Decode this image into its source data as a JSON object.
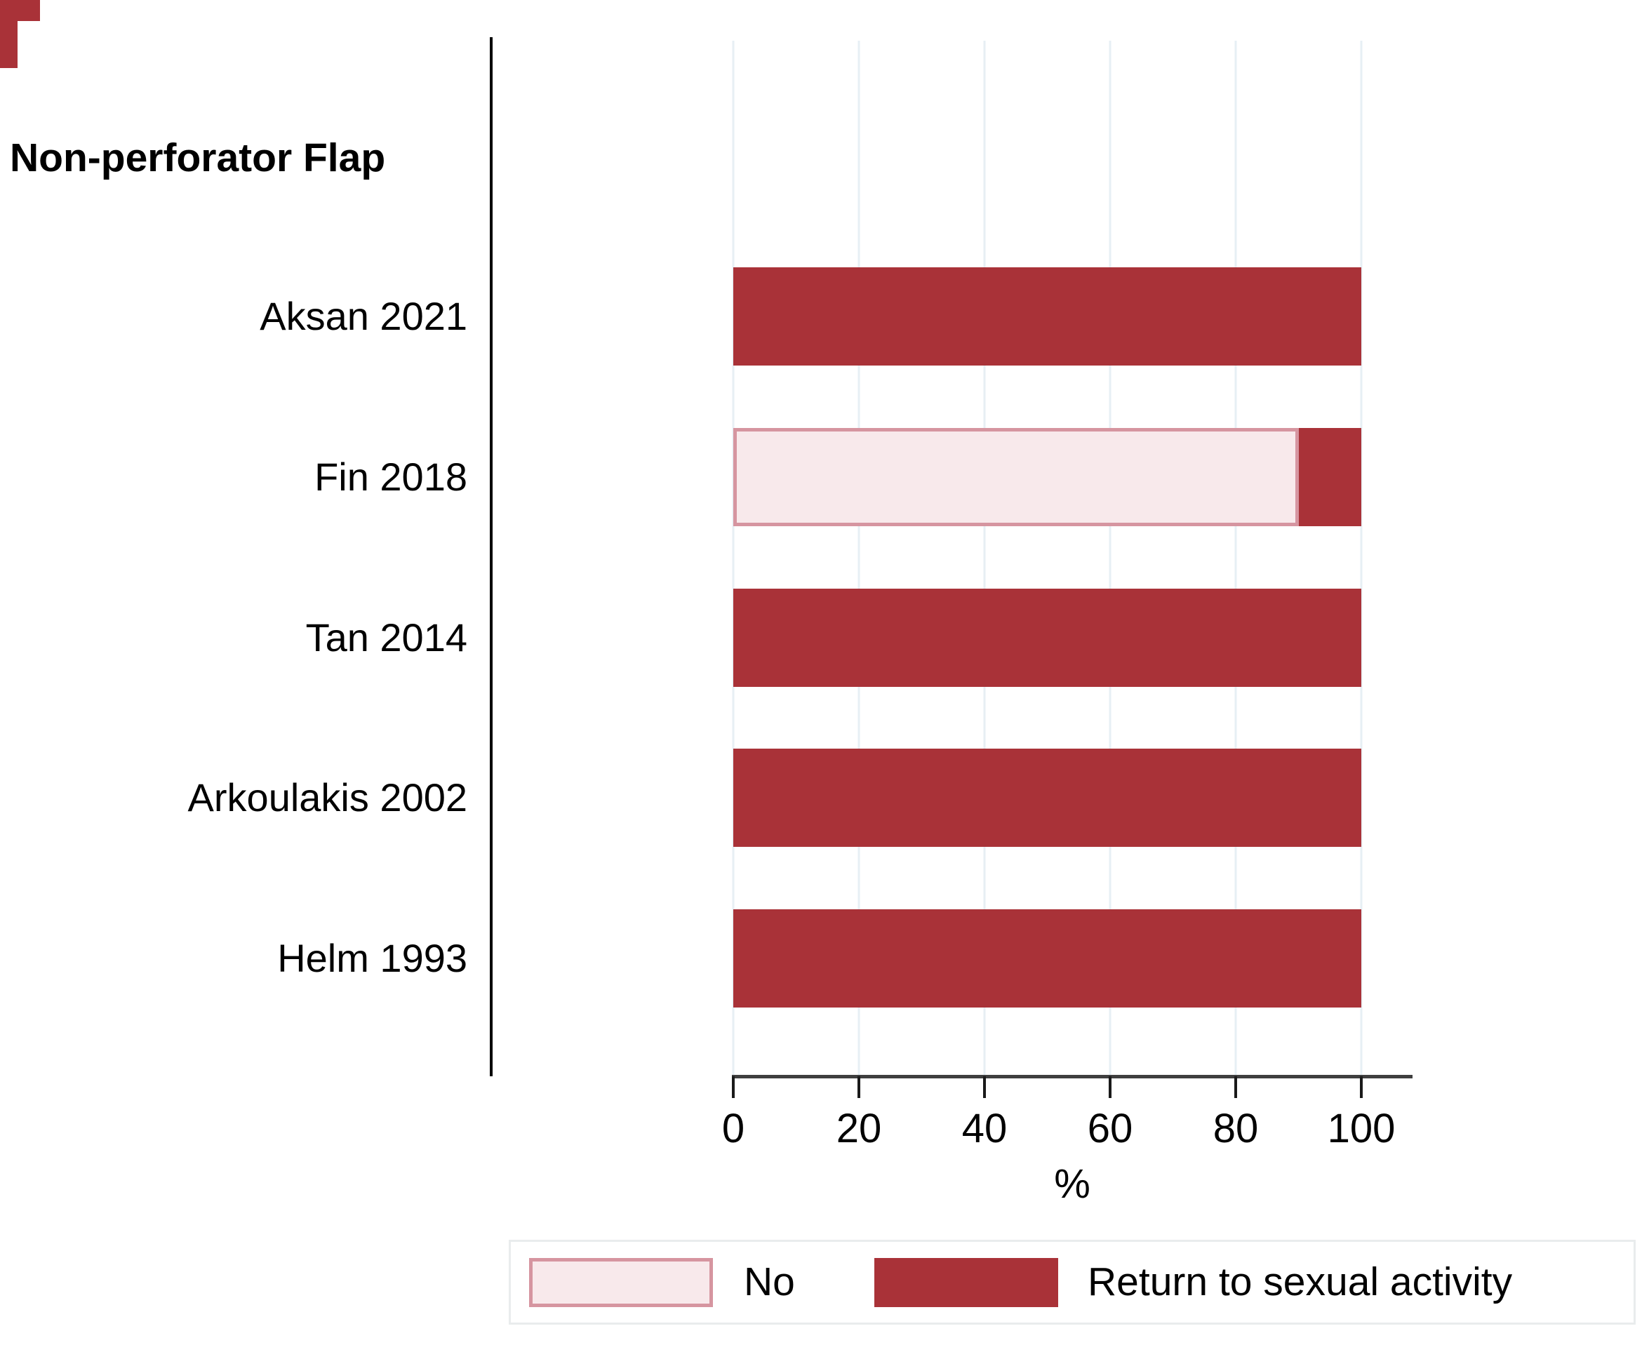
{
  "chart_data": {
    "type": "bar",
    "orientation": "horizontal",
    "group_label": "Non-perforator Flap",
    "categories": [
      "Aksan 2021",
      "Fin 2018",
      "Tan 2014",
      "Arkoulakis 2002",
      "Helm 1993"
    ],
    "series": [
      {
        "key": "no",
        "name": "No",
        "color": "#F8E9EB",
        "border_color": "#D695A0",
        "values": [
          0,
          90,
          0,
          0,
          0
        ]
      },
      {
        "key": "return-to-sexual-activity",
        "name": "Return to sexual activity",
        "color": "#A93238",
        "values": [
          100,
          10,
          100,
          100,
          100
        ]
      }
    ],
    "xlabel": "%",
    "xticks": [
      0,
      20,
      40,
      60,
      80,
      100
    ],
    "xlim": [
      0,
      100
    ],
    "grid": "vertical gridlines at each x tick",
    "legend_position": "bottom"
  },
  "colors": {
    "grid": "#E7EFF4",
    "x_axis_line": "#3F3F3F",
    "tick_mark": "#1a1a1a",
    "category_axis_line": "#000000",
    "legend_border": "#E9ECED",
    "artifact_red": "#A93238",
    "text": "#000000",
    "background": "#ffffff"
  }
}
